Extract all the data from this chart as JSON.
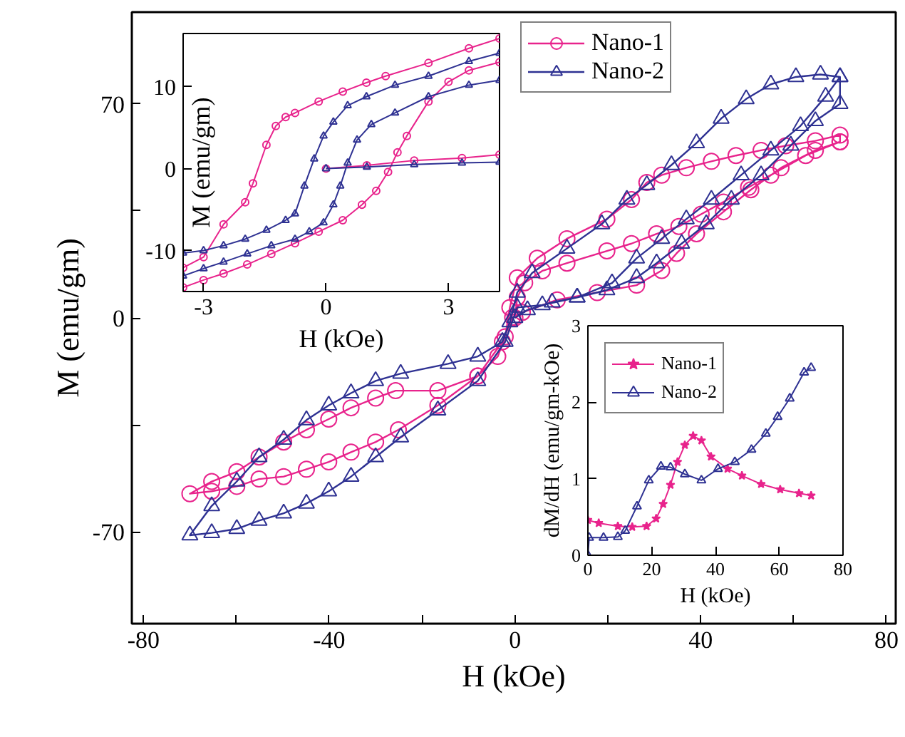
{
  "chart_data": [
    {
      "type": "line",
      "xlabel": "H (kOe)",
      "ylabel": "M (emu/gm)",
      "xlim": [
        -82.5,
        82
      ],
      "ylim": [
        -100,
        100
      ],
      "xticks": [
        -80,
        {
          "value": -60,
          "label": null
        },
        -40,
        {
          "value": -20,
          "label": null
        },
        0,
        {
          "value": 20,
          "label": null
        },
        40,
        {
          "value": 60,
          "label": null
        },
        80
      ],
      "yticks": [
        -70,
        {
          "value": -35,
          "label": null
        },
        0,
        {
          "value": 35,
          "label": null
        },
        70
      ],
      "grid": false,
      "legend": "top right",
      "line_style": "solid",
      "series": [
        {
          "name": "Nano-1",
          "color": "#e8238c",
          "marker": "circle",
          "x": [
            0,
            0.5,
            2.1,
            5.9,
            11.2,
            19.8,
            25.1,
            30.5,
            35.3,
            40.1,
            44.9,
            50.3,
            55.1,
            62.6,
            70,
            70,
            64.7,
            58.3,
            53,
            47.6,
            42.3,
            36.9,
            31.6,
            28.4,
            25.1,
            19.8,
            11.2,
            4.8,
            0.5,
            -1.1,
            -2.1,
            -3.7,
            -8,
            -16.6,
            -25.7,
            -30,
            -35.3,
            -40.1,
            -44.9,
            -49.8,
            -55.1,
            -59.9,
            -65.3,
            -70,
            -65.3,
            -59.9,
            -55.1,
            -49.8,
            -44.9,
            -40.1,
            -35.3,
            -30,
            -25.1,
            -16.6,
            -8,
            -2.7,
            -0.5,
            1.6,
            9.1,
            17.7,
            26.2,
            31.6,
            34.8,
            39.1,
            44.9,
            50.8,
            57.3,
            64.7,
            70
          ],
          "values": [
            0,
            6.7,
            11.5,
            15.4,
            17.9,
            21.9,
            24.3,
            27.5,
            29.9,
            33.9,
            37.9,
            42.7,
            46.7,
            53.1,
            57.6,
            59.8,
            57.9,
            56.3,
            54.8,
            53.1,
            51.2,
            49.1,
            46.7,
            44.3,
            38.7,
            32.3,
            25.9,
            19.5,
            13.1,
            3.4,
            -6.2,
            -12.6,
            -19,
            -23.8,
            -23.8,
            -26.2,
            -29.4,
            -33.1,
            -36.6,
            -40.6,
            -45.5,
            -50.3,
            -53.5,
            -57.5,
            -56.7,
            -55.1,
            -52.7,
            -51.9,
            -49.5,
            -47.1,
            -43.9,
            -40.6,
            -36.6,
            -28.6,
            -19,
            -7.8,
            0.2,
            1.8,
            5.9,
            8.3,
            10.7,
            15.5,
            21.1,
            27.5,
            34.7,
            41.9,
            49.1,
            54.8,
            57.6
          ]
        },
        {
          "name": "Nano-2",
          "color": "#2e3192",
          "marker": "triangle",
          "x": [
            0,
            2.7,
            8,
            13.4,
            19.8,
            26.2,
            30.5,
            35.9,
            41.2,
            46.6,
            53,
            59.4,
            64.7,
            70,
            70,
            65.8,
            60.5,
            55.1,
            49.8,
            44.4,
            39.1,
            33.7,
            28.4,
            24.1,
            18.7,
            11.2,
            3.7,
            0.5,
            -1.1,
            -2.7,
            -8,
            -14.4,
            -24.6,
            -30,
            -35.3,
            -40.1,
            -44.9,
            -49.8,
            -55.1,
            -59.9,
            -65.3,
            -70,
            -65.3,
            -59.9,
            -55.1,
            -49.8,
            -44.9,
            -40.1,
            -35.3,
            -30,
            -24.6,
            -16.6,
            -8,
            -2.1,
            0.5,
            5.9,
            13.4,
            20.9,
            26.2,
            31.6,
            36.9,
            42.3,
            48.7,
            55.1,
            61.5,
            66.9,
            70
          ],
          "values": [
            0,
            2.6,
            5.1,
            6.7,
            9.1,
            13.1,
            17.9,
            24.3,
            30.7,
            38.7,
            46.7,
            56.4,
            64.4,
            70,
            78.8,
            79.6,
            78.8,
            76.4,
            71.6,
            65.2,
            57.2,
            50,
            43.5,
            38.7,
            30.7,
            22.7,
            14.7,
            8.3,
            -1.4,
            -7.8,
            -12.6,
            -15,
            -18.2,
            -20.6,
            -24.6,
            -28.6,
            -33.4,
            -39.8,
            -45.5,
            -53.5,
            -61.5,
            -71.1,
            -70.3,
            -69,
            -66.3,
            -63.9,
            -60.7,
            -56.7,
            -51.9,
            -45.5,
            -39,
            -30.2,
            -20.6,
            -7.8,
            3.4,
            4.2,
            6.7,
            11.4,
            19.5,
            25.9,
            32.3,
            38.7,
            46.7,
            54.8,
            62.8,
            72.4,
            78.8
          ]
        }
      ]
    },
    {
      "type": "line",
      "xlabel": "H (kOe)",
      "ylabel": "M (emu/gm)",
      "xlim": [
        -3.5,
        4.25
      ],
      "ylim": [
        -15,
        16.5
      ],
      "xticks": [
        -3,
        0,
        3
      ],
      "yticks": [
        -10,
        0,
        10
      ],
      "grid": false,
      "line_style": "solid",
      "series": [
        {
          "color": "#e8238c",
          "marker": "circle",
          "x": [
            0,
            1,
            2.16,
            3.33,
            4.25,
            null,
            4.25,
            3.5,
            2.51,
            1.46,
            0.99,
            0.41,
            -0.18,
            -0.76,
            -0.99,
            -1.23,
            -1.46,
            -1.79,
            -1.98,
            -2.51,
            -3,
            -3.5,
            null,
            -3.5,
            -3,
            -2.51,
            -1.93,
            -1.34,
            -0.76,
            -0.18,
            0.41,
            0.88,
            1.23,
            1.52,
            1.75,
            1.98,
            2.51,
            3,
            3.5,
            4.25
          ],
          "values": [
            0,
            0.4,
            1,
            1.3,
            1.7,
            null,
            15.9,
            14.7,
            12.9,
            11.3,
            10.5,
            9.4,
            8.2,
            6.8,
            6.3,
            5.2,
            2.9,
            -1.8,
            -4.1,
            -6.8,
            -10.8,
            -12.1,
            null,
            -14.5,
            -13.6,
            -12.8,
            -11.7,
            -10.4,
            -9.1,
            -7.7,
            -6.3,
            -4.4,
            -2.7,
            -0.4,
            2,
            4,
            8.2,
            10.6,
            12,
            13
          ]
        },
        {
          "color": "#2e3192",
          "marker": "triangle",
          "x": [
            0,
            1,
            2.16,
            3.33,
            4.25,
            null,
            4.25,
            3.5,
            2.51,
            1.69,
            0.99,
            0.53,
            0.18,
            -0.06,
            -0.29,
            -0.53,
            -0.76,
            -0.99,
            -1.46,
            -1.98,
            -2.51,
            -3,
            -3.5,
            null,
            -3.5,
            -3,
            -2.51,
            -1.93,
            -1.34,
            -0.76,
            -0.41,
            -0.06,
            0.18,
            0.35,
            0.53,
            0.76,
            1.11,
            1.69,
            2.51,
            3.5,
            4.25
          ],
          "values": [
            0,
            0.2,
            0.5,
            0.7,
            0.8,
            null,
            14.1,
            13.1,
            11.3,
            10.2,
            8.8,
            7.7,
            5.7,
            4,
            1.2,
            -2.1,
            -5.5,
            -6.3,
            -7.5,
            -8.6,
            -9.4,
            -10,
            -10.3,
            null,
            -13.1,
            -12.2,
            -11.4,
            -10.4,
            -9.4,
            -8.6,
            -7.7,
            -6.6,
            -4.4,
            -2.1,
            0.7,
            3.5,
            5.4,
            6.8,
            8.8,
            10.2,
            10.8
          ]
        }
      ]
    },
    {
      "type": "line",
      "xlabel": "H (kOe)",
      "ylabel": "dM/dH (emu/gm-kOe)",
      "xlim": [
        0,
        80
      ],
      "ylim": [
        0,
        3
      ],
      "xticks": [
        0,
        20,
        40,
        60,
        80
      ],
      "yticks": [
        0,
        1,
        2,
        3
      ],
      "grid": false,
      "legend": "top left",
      "line_style": "solid",
      "series": [
        {
          "name": "Nano-1",
          "color": "#e8238c",
          "marker": "star",
          "x": [
            0,
            3.4,
            9.4,
            13.9,
            18.4,
            21.4,
            23.6,
            25.9,
            28.1,
            30.4,
            33,
            35.6,
            38.6,
            43.8,
            48.3,
            54.3,
            60.3,
            66.2,
            70
          ],
          "values": [
            0.46,
            0.42,
            0.38,
            0.37,
            0.38,
            0.48,
            0.67,
            0.92,
            1.22,
            1.44,
            1.56,
            1.5,
            1.29,
            1.13,
            1.04,
            0.93,
            0.86,
            0.81,
            0.78
          ]
        },
        {
          "name": "Nano-2",
          "color": "#2e3192",
          "marker": "triangle",
          "x": [
            0,
            0.4,
            4.9,
            9.4,
            11.7,
            15.4,
            19.1,
            22.9,
            25.9,
            30.4,
            35.6,
            40.8,
            46.1,
            51.3,
            55.8,
            59.5,
            63.3,
            67.8,
            70
          ],
          "values": [
            0,
            0.23,
            0.23,
            0.24,
            0.32,
            0.64,
            0.98,
            1.16,
            1.15,
            1.06,
            0.98,
            1.13,
            1.22,
            1.38,
            1.59,
            1.81,
            2.05,
            2.39,
            2.45
          ]
        }
      ]
    }
  ]
}
